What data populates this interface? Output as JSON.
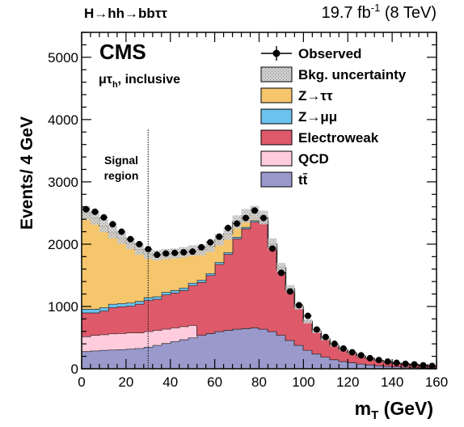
{
  "chart_data": {
    "type": "bar",
    "stacked": true,
    "header_left": "H→hh→bbττ",
    "header_right": "19.7 fb",
    "header_right_sup": "-1",
    "header_right_tail": " (8 TeV)",
    "experiment": "CMS",
    "channel_main": "μτ",
    "channel_sub": "h",
    "channel_tail": ", inclusive",
    "xlabel_main": "m",
    "xlabel_sub": "T",
    "xlabel_tail": " (GeV)",
    "ylabel": "Events/ 4 GeV",
    "xlim": [
      0,
      160
    ],
    "ylim": [
      0,
      5400
    ],
    "x_ticks": [
      "0",
      "20",
      "40",
      "60",
      "80",
      "100",
      "120",
      "140",
      "160"
    ],
    "y_ticks": [
      "0",
      "1000",
      "2000",
      "3000",
      "4000",
      "5000"
    ],
    "signal_region_line1": "Signal",
    "signal_region_line2": "region",
    "signal_region_cut": 30,
    "bin_edges": [
      0,
      4,
      8,
      12,
      16,
      20,
      24,
      28,
      32,
      36,
      40,
      44,
      48,
      52,
      56,
      60,
      64,
      68,
      72,
      76,
      80,
      84,
      88,
      92,
      96,
      100,
      104,
      108,
      112,
      116,
      120,
      124,
      128,
      132,
      136,
      140,
      144,
      148,
      152,
      156,
      160
    ],
    "series": [
      {
        "name": "tt̄",
        "color": "#9999cc",
        "values": [
          280,
          290,
          300,
          305,
          310,
          320,
          330,
          350,
          380,
          410,
          440,
          470,
          500,
          540,
          570,
          600,
          620,
          640,
          650,
          660,
          640,
          600,
          540,
          460,
          380,
          300,
          240,
          190,
          150,
          120,
          100,
          80,
          65,
          52,
          42,
          34,
          28,
          22,
          18,
          14
        ]
      },
      {
        "name": "QCD",
        "color": "#ffccdd",
        "values": [
          240,
          250,
          250,
          260,
          260,
          260,
          250,
          250,
          240,
          230,
          220,
          210,
          200,
          0,
          0,
          0,
          0,
          0,
          0,
          0,
          0,
          0,
          0,
          0,
          0,
          0,
          0,
          0,
          0,
          0,
          0,
          0,
          0,
          0,
          0,
          0,
          0,
          0,
          0,
          0
        ]
      },
      {
        "name": "Electroweak",
        "color": "#de5a6a",
        "values": [
          380,
          360,
          380,
          420,
          430,
          430,
          460,
          500,
          500,
          550,
          560,
          580,
          640,
          850,
          930,
          1080,
          1220,
          1450,
          1600,
          1700,
          1700,
          1350,
          1050,
          800,
          600,
          450,
          350,
          280,
          220,
          180,
          150,
          120,
          100,
          80,
          66,
          54,
          45,
          38,
          32,
          27
        ]
      },
      {
        "name": "Z→μμ",
        "color": "#6bc2ed",
        "values": [
          60,
          60,
          55,
          55,
          50,
          50,
          45,
          45,
          40,
          40,
          40,
          40,
          38,
          35,
          32,
          30,
          28,
          26,
          24,
          22,
          18,
          14,
          12,
          10,
          8,
          6,
          5,
          4,
          3,
          3,
          2,
          2,
          2,
          1,
          1,
          1,
          1,
          1,
          1,
          1
        ]
      },
      {
        "name": "Z→ττ",
        "color": "#f5c66c",
        "values": [
          1540,
          1460,
          1310,
          1150,
          1050,
          950,
          830,
          700,
          660,
          610,
          590,
          570,
          520,
          480,
          430,
          360,
          300,
          240,
          180,
          120,
          70,
          40,
          25,
          16,
          10,
          6,
          4,
          3,
          2,
          2,
          1,
          1,
          1,
          1,
          1,
          1,
          1,
          1,
          1,
          0
        ]
      }
    ],
    "observed": {
      "name": "Observed",
      "values": [
        2560,
        2520,
        2430,
        2320,
        2200,
        2080,
        2000,
        1920,
        1830,
        1850,
        1860,
        1870,
        1880,
        1950,
        2030,
        2120,
        2260,
        2330,
        2420,
        2540,
        2420,
        1930,
        1540,
        1240,
        1020,
        850,
        630,
        510,
        400,
        325,
        265,
        215,
        170,
        140,
        115,
        95,
        80,
        70,
        55,
        45
      ],
      "errors": [
        51,
        50,
        49,
        48,
        47,
        46,
        45,
        44,
        43,
        43,
        43,
        43,
        43,
        44,
        45,
        46,
        48,
        48,
        49,
        50,
        49,
        44,
        39,
        35,
        32,
        29,
        25,
        23,
        20,
        18,
        16,
        15,
        13,
        12,
        11,
        10,
        9,
        8,
        7,
        7
      ]
    },
    "uncertainty": {
      "name": "Bkg. uncertainty",
      "color": "#bbbbbb",
      "fraction": 0.045
    },
    "legend_position": "top-right",
    "legend_order": [
      "Observed",
      "Bkg. uncertainty",
      "Z→ττ",
      "Z→μμ",
      "Electroweak",
      "QCD",
      "tt̄"
    ]
  }
}
